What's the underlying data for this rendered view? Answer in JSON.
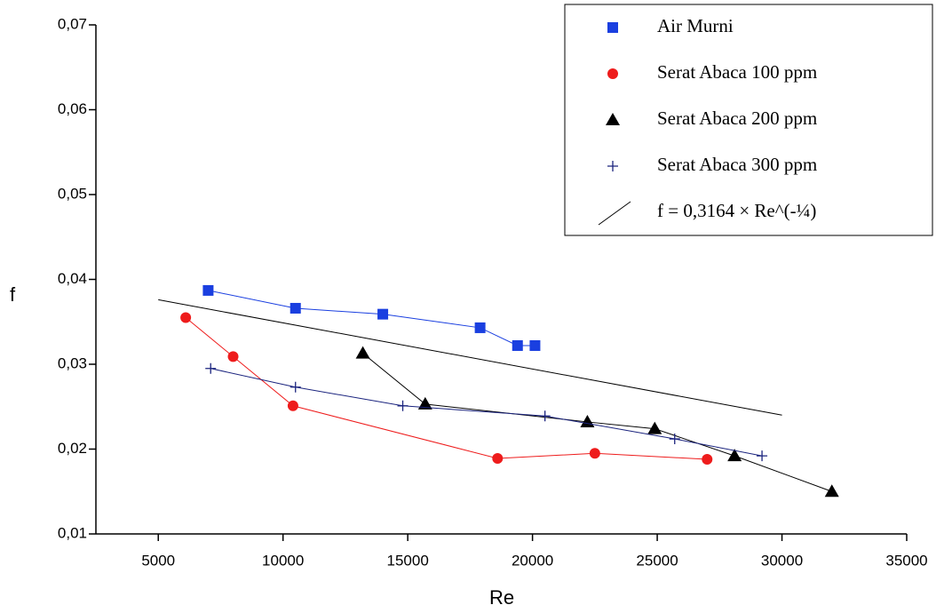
{
  "chart_data": {
    "type": "scatter",
    "x_label": "Re",
    "y_label": "f",
    "xlim": [
      2500,
      35000
    ],
    "ylim": [
      0.01,
      0.07
    ],
    "xticks": [
      5000,
      10000,
      15000,
      20000,
      25000,
      30000,
      35000
    ],
    "yticks": [
      {
        "value": 0.01,
        "label": "0,01"
      },
      {
        "value": 0.02,
        "label": "0,02"
      },
      {
        "value": 0.03,
        "label": "0,03"
      },
      {
        "value": 0.04,
        "label": "0,04"
      },
      {
        "value": 0.05,
        "label": "0,05"
      },
      {
        "value": 0.06,
        "label": "0,06"
      },
      {
        "value": 0.07,
        "label": "0,07"
      }
    ],
    "legend": "top-right",
    "series": [
      {
        "name": "Air Murni",
        "color": "#1a3fe0",
        "marker": "square",
        "x": [
          7000,
          10500,
          14000,
          17900,
          19400,
          20100
        ],
        "values": [
          0.0387,
          0.0366,
          0.0359,
          0.0343,
          0.0322,
          0.0322
        ]
      },
      {
        "name": "Serat Abaca 100 ppm",
        "color": "#ee1c1c",
        "marker": "circle",
        "x": [
          6100,
          8000,
          10400,
          18600,
          22500,
          27000
        ],
        "values": [
          0.0355,
          0.0309,
          0.0251,
          0.0189,
          0.0195,
          0.0188
        ]
      },
      {
        "name": "Serat Abaca 200 ppm",
        "color": "#000000",
        "marker": "triangle",
        "x": [
          13200,
          15700,
          22200,
          24900,
          28100,
          32000
        ],
        "values": [
          0.0313,
          0.0253,
          0.0232,
          0.0224,
          0.0192,
          0.015
        ]
      },
      {
        "name": "Serat Abaca 300 ppm",
        "color": "#1a237e",
        "marker": "plus",
        "x": [
          7100,
          10500,
          14800,
          20500,
          25700,
          29200
        ],
        "values": [
          0.0295,
          0.0273,
          0.0251,
          0.0239,
          0.0212,
          0.0192
        ]
      },
      {
        "name": "f = 0,3164 × Re^(-¼)",
        "color": "#000000",
        "marker": "line",
        "x": [
          5000,
          30000
        ],
        "values": [
          0.0376,
          0.024
        ]
      }
    ]
  }
}
